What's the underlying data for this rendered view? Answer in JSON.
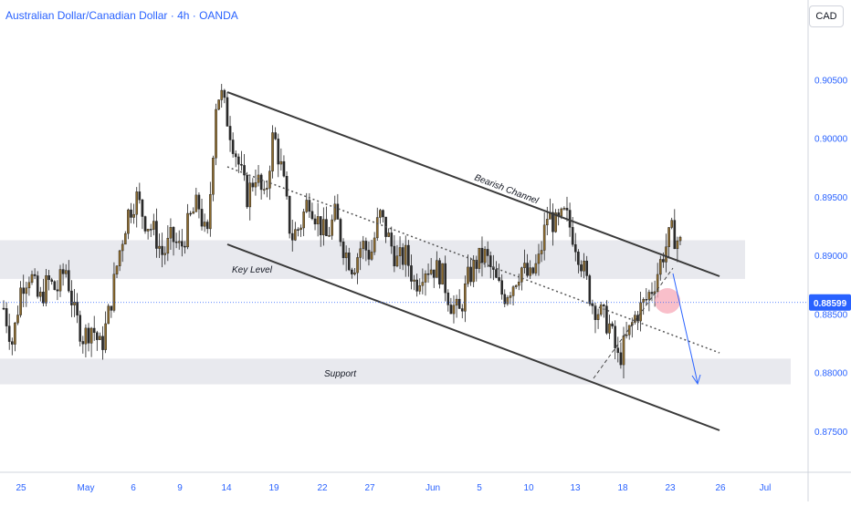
{
  "header": {
    "title": "Australian Dollar/Canadian Dollar · 4h · OANDA",
    "currency_button": "CAD"
  },
  "colors": {
    "axis_text": "#2962ff",
    "zone_fill": "#e8e9ee",
    "candle_up": "#8b6a2e",
    "candle_down": "#2b2b2b",
    "channel": "#3a3a3a",
    "price_line": "#2962ff",
    "highlight": "#f7a9b8"
  },
  "chart_data": {
    "type": "candlestick",
    "symbol": "AUD/CAD",
    "ylim": [
      0.8715,
      0.9118
    ],
    "y_ticks": [
      "0.87500",
      "0.88000",
      "0.88500",
      "0.89000",
      "0.89500",
      "0.90000",
      "0.90500"
    ],
    "x_ticks": [
      "25",
      "May",
      "6",
      "9",
      "14",
      "19",
      "22",
      "27",
      "Jun",
      "5",
      "10",
      "13",
      "18",
      "23",
      "26",
      "Jul"
    ],
    "last_price": "0.88599",
    "zones": [
      {
        "label": "Key Level",
        "from": 0.888,
        "to": 0.8913
      },
      {
        "label": "Support",
        "from": 0.879,
        "to": 0.8812
      }
    ],
    "annotations": [
      "Bearish Channel",
      "Key Level",
      "Support"
    ],
    "close_path": [
      [
        0,
        0.8855
      ],
      [
        4,
        0.8825
      ],
      [
        8,
        0.8875
      ],
      [
        12,
        0.8885
      ],
      [
        16,
        0.886
      ],
      [
        20,
        0.8878
      ],
      [
        24,
        0.887
      ],
      [
        28,
        0.889
      ],
      [
        32,
        0.885
      ],
      [
        36,
        0.883
      ],
      [
        40,
        0.884
      ],
      [
        44,
        0.882
      ],
      [
        48,
        0.8855
      ],
      [
        52,
        0.89
      ],
      [
        56,
        0.8935
      ],
      [
        60,
        0.895
      ],
      [
        64,
        0.893
      ],
      [
        68,
        0.892
      ],
      [
        72,
        0.89
      ],
      [
        76,
        0.8915
      ],
      [
        80,
        0.8905
      ],
      [
        84,
        0.893
      ],
      [
        88,
        0.8945
      ],
      [
        92,
        0.891
      ],
      [
        96,
        0.903
      ],
      [
        98,
        0.904
      ],
      [
        102,
        0.901
      ],
      [
        106,
        0.898
      ],
      [
        110,
        0.895
      ],
      [
        114,
        0.897
      ],
      [
        118,
        0.8945
      ],
      [
        122,
        0.9005
      ],
      [
        126,
        0.897
      ],
      [
        130,
        0.8915
      ],
      [
        134,
        0.8925
      ],
      [
        138,
        0.895
      ],
      [
        142,
        0.893
      ],
      [
        146,
        0.8915
      ],
      [
        150,
        0.8935
      ],
      [
        154,
        0.8905
      ],
      [
        158,
        0.889
      ],
      [
        162,
        0.891
      ],
      [
        166,
        0.89
      ],
      [
        170,
        0.8935
      ],
      [
        174,
        0.8915
      ],
      [
        178,
        0.8895
      ],
      [
        182,
        0.89
      ],
      [
        186,
        0.8875
      ],
      [
        190,
        0.889
      ],
      [
        194,
        0.889
      ],
      [
        198,
        0.8885
      ],
      [
        202,
        0.886
      ],
      [
        206,
        0.885
      ],
      [
        210,
        0.888
      ],
      [
        214,
        0.8895
      ],
      [
        218,
        0.89
      ],
      [
        222,
        0.888
      ],
      [
        226,
        0.8865
      ],
      [
        230,
        0.8875
      ],
      [
        234,
        0.889
      ],
      [
        238,
        0.888
      ],
      [
        242,
        0.8895
      ],
      [
        246,
        0.8935
      ],
      [
        250,
        0.8925
      ],
      [
        254,
        0.8935
      ],
      [
        258,
        0.8915
      ],
      [
        262,
        0.889
      ],
      [
        266,
        0.886
      ],
      [
        270,
        0.885
      ],
      [
        274,
        0.884
      ],
      [
        278,
        0.881
      ],
      [
        282,
        0.883
      ],
      [
        286,
        0.885
      ],
      [
        290,
        0.886
      ],
      [
        294,
        0.8875
      ],
      [
        298,
        0.89
      ],
      [
        302,
        0.892
      ],
      [
        306,
        0.891
      ]
    ]
  }
}
